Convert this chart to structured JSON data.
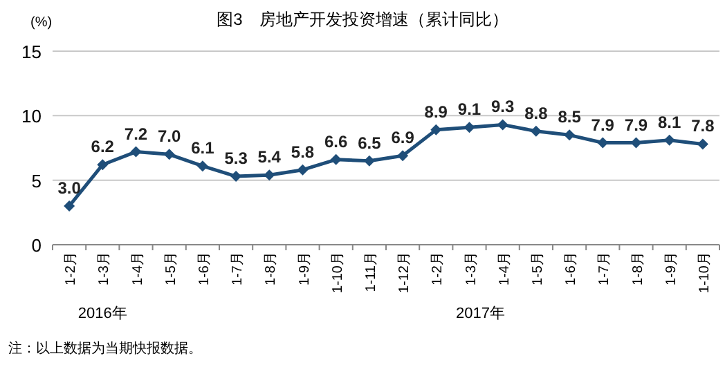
{
  "chart_data": {
    "type": "line",
    "title": "图3　房地产开发投资增速（累计同比）",
    "ylabel": "(%)",
    "categories": [
      "1-2月",
      "1-3月",
      "1-4月",
      "1-5月",
      "1-6月",
      "1-7月",
      "1-8月",
      "1-9月",
      "1-10月",
      "1-11月",
      "1-12月",
      "1-2月",
      "1-3月",
      "1-4月",
      "1-5月",
      "1-6月",
      "1-7月",
      "1-8月",
      "1-9月",
      "1-10月"
    ],
    "series": [
      {
        "color": "#1f4e79",
        "values": [
          3.0,
          6.2,
          7.2,
          7.0,
          6.1,
          5.3,
          5.4,
          5.8,
          6.6,
          6.5,
          6.9,
          8.9,
          9.1,
          9.3,
          8.8,
          8.5,
          7.9,
          7.9,
          8.1,
          7.8
        ],
        "value_labels": [
          "3.0",
          "6.2",
          "7.2",
          "7.0",
          "6.1",
          "5.3",
          "5.4",
          "5.8",
          "6.6",
          "6.5",
          "6.9",
          "8.9",
          "9.1",
          "9.3",
          "8.8",
          "8.5",
          "7.9",
          "7.9",
          "8.1",
          "7.8"
        ]
      }
    ],
    "ylim": [
      0,
      15
    ],
    "yticks": [
      0,
      5,
      10,
      15
    ],
    "grid": "y",
    "marker": "diamond",
    "line_style": "solid",
    "annotations": [
      "2016年",
      "2017年",
      "注：以上数据为当期快报数据。"
    ]
  }
}
